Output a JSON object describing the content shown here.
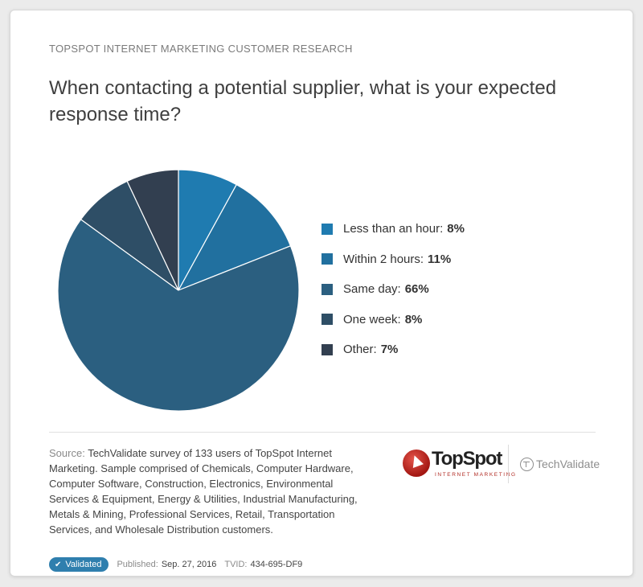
{
  "eyebrow": "TOPSPOT INTERNET MARKETING CUSTOMER RESEARCH",
  "question": "When contacting a potential supplier, what is your expected response time?",
  "chart_data": {
    "type": "pie",
    "title": "When contacting a potential supplier, what is your expected response time?",
    "labels": [
      "Less than an hour",
      "Within 2 hours",
      "Same day",
      "One week",
      "Other"
    ],
    "values": [
      8,
      11,
      66,
      8,
      7
    ],
    "value_labels": [
      "8%",
      "11%",
      "66%",
      "8%",
      "7%"
    ],
    "colors": [
      "#1f7bb0",
      "#21709f",
      "#2b5f80",
      "#2e4e66",
      "#323f50"
    ],
    "legend_position": "right",
    "start_angle": "12 o'clock, clockwise"
  },
  "source": {
    "label": "Source:",
    "text": "TechValidate survey of 133 users of TopSpot Internet Marketing. Sample comprised of Chemicals, Computer Hardware, Computer Software, Construction, Electronics, Environmental Services & Equipment, Energy & Utilities, Industrial Manufacturing, Metals & Mining, Professional Services, Retail, Transportation Services, and Wholesale Distribution customers."
  },
  "logos": {
    "topspot_name": "TopSpot",
    "topspot_tagline": "INTERNET MARKETING",
    "techvalidate_name": "TechValidate"
  },
  "footer": {
    "badge": "Validated",
    "published_label": "Published:",
    "published_date": "Sep. 27, 2016",
    "tvid_label": "TVID:",
    "tvid": "434-695-DF9"
  }
}
